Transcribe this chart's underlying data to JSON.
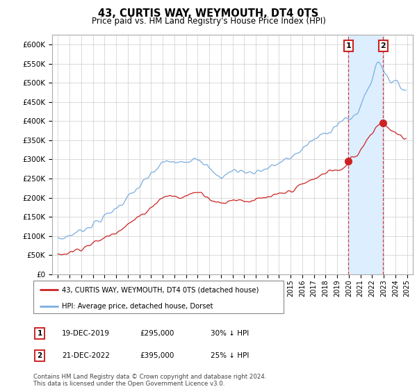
{
  "title": "43, CURTIS WAY, WEYMOUTH, DT4 0TS",
  "subtitle": "Price paid vs. HM Land Registry's House Price Index (HPI)",
  "ylim": [
    0,
    625000
  ],
  "yticks": [
    0,
    50000,
    100000,
    150000,
    200000,
    250000,
    300000,
    350000,
    400000,
    450000,
    500000,
    550000,
    600000
  ],
  "ytick_labels": [
    "£0",
    "£50K",
    "£100K",
    "£150K",
    "£200K",
    "£250K",
    "£300K",
    "£350K",
    "£400K",
    "£450K",
    "£500K",
    "£550K",
    "£600K"
  ],
  "hpi_color": "#7aade0",
  "price_color": "#cc2222",
  "annotation_color": "#cc2222",
  "annotation_box_color": "#cc2222",
  "sale1_year": 2019.96,
  "sale1_price": 295000,
  "sale1_label": "1",
  "sale2_year": 2022.96,
  "sale2_price": 395000,
  "sale2_label": "2",
  "shade_color": "#ddeeff",
  "legend_line1": "43, CURTIS WAY, WEYMOUTH, DT4 0TS (detached house)",
  "legend_line2": "HPI: Average price, detached house, Dorset",
  "table_row1_num": "1",
  "table_row1_date": "19-DEC-2019",
  "table_row1_price": "£295,000",
  "table_row1_hpi": "30% ↓ HPI",
  "table_row2_num": "2",
  "table_row2_date": "21-DEC-2022",
  "table_row2_price": "£395,000",
  "table_row2_hpi": "25% ↓ HPI",
  "footer": "Contains HM Land Registry data © Crown copyright and database right 2024.\nThis data is licensed under the Open Government Licence v3.0.",
  "bg_color": "#ffffff",
  "grid_color": "#cccccc"
}
